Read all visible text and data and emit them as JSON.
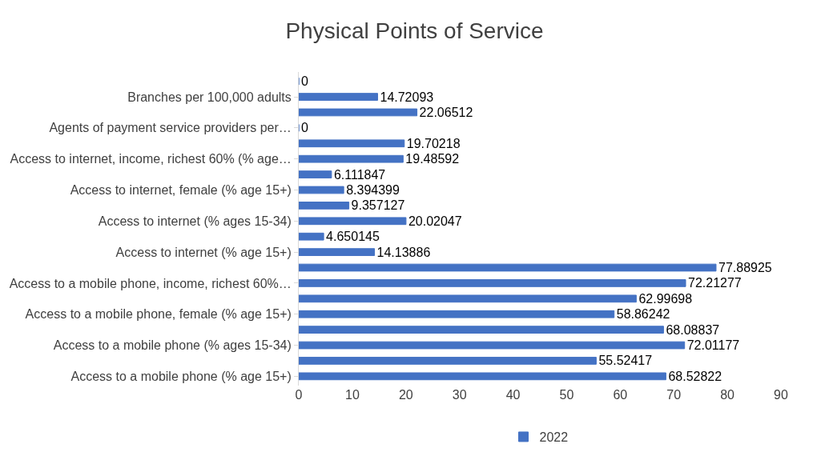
{
  "chart_data": {
    "type": "bar",
    "orientation": "horizontal",
    "title": "Physical Points of Service",
    "categories": [
      null,
      "Branches per 100,000 adults",
      null,
      "Agents of payment service providers per…",
      null,
      "Access to internet, income, richest 60% (% age…",
      null,
      "Access to internet, female (% age 15+)",
      null,
      "Access to internet (% ages 15-34)",
      null,
      "Access to internet (% age 15+)",
      null,
      "Access to a mobile phone, income, richest 60%…",
      null,
      "Access to a mobile phone, female (% age 15+)",
      null,
      "Access to a mobile phone (% ages 15-34)",
      null,
      "Access to a mobile phone (% age 15+)"
    ],
    "series": [
      {
        "name": "2022",
        "color": "#4472c4",
        "values": [
          0,
          14.72093,
          22.06512,
          0,
          19.70218,
          19.48592,
          6.111847,
          8.394399,
          9.357127,
          20.02047,
          4.650145,
          14.13886,
          77.88925,
          72.21277,
          62.99698,
          58.86242,
          68.08837,
          72.01177,
          55.52417,
          68.52822
        ]
      }
    ],
    "xlim": [
      0,
      90
    ],
    "xticks": [
      0,
      10,
      20,
      30,
      40,
      50,
      60,
      70,
      80,
      90
    ],
    "data_labels": true,
    "legend": "bottom"
  }
}
